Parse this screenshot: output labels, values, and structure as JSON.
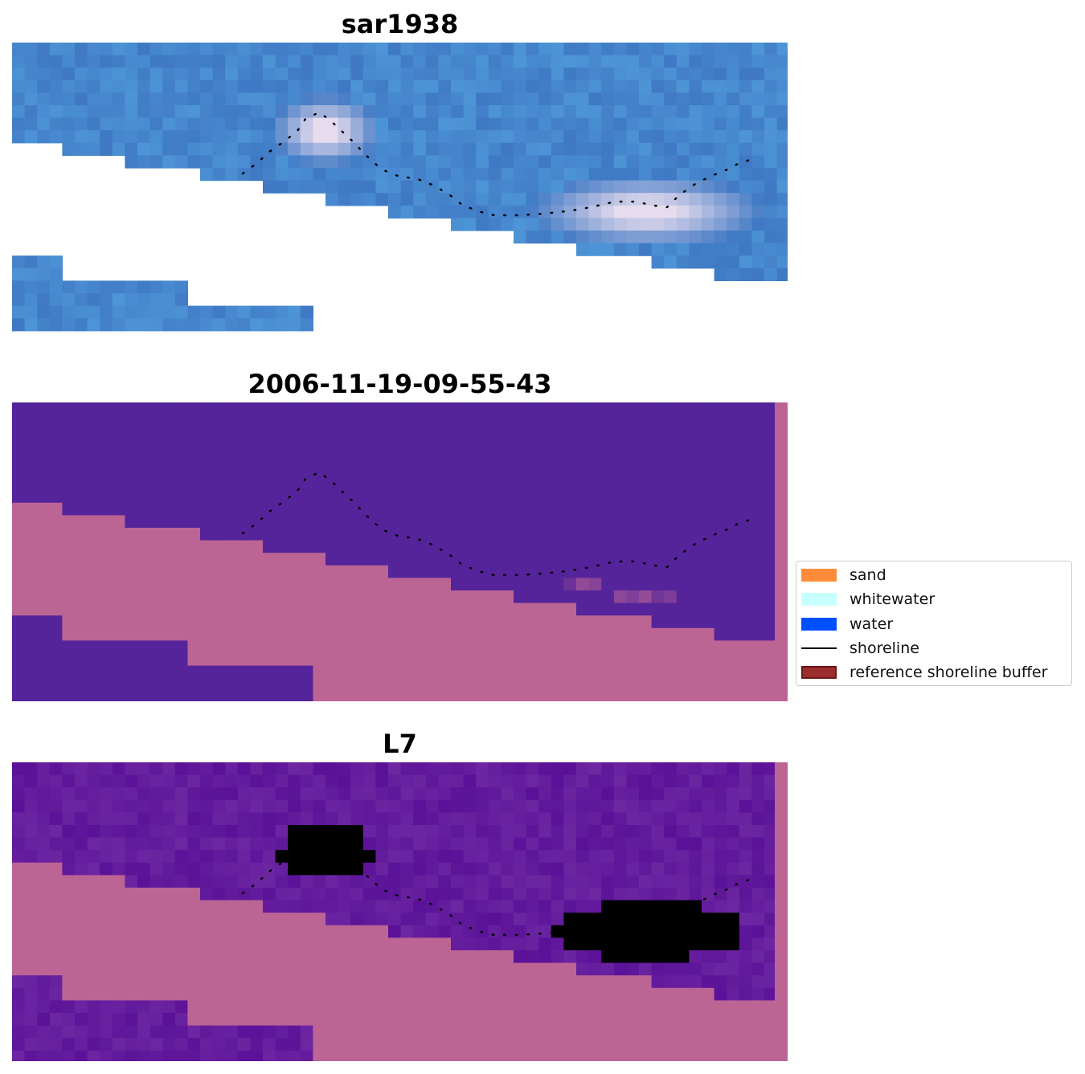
{
  "panels": [
    {
      "title": "sar1938",
      "kind": "rgb"
    },
    {
      "title": "2006-11-19-09-55-43",
      "kind": "classified"
    },
    {
      "title": "L7",
      "kind": "probability"
    }
  ],
  "legend": {
    "items": [
      {
        "label": "sand",
        "type": "patch",
        "color": "#ff8c3a",
        "icon": "sand-swatch-icon"
      },
      {
        "label": "whitewater",
        "type": "patch",
        "color": "#c8ffff",
        "icon": "whitewater-swatch-icon"
      },
      {
        "label": "water",
        "type": "patch",
        "color": "#0050ff",
        "icon": "water-swatch-icon"
      },
      {
        "label": "shoreline",
        "type": "line",
        "color": "#000000",
        "icon": "shoreline-line-icon"
      },
      {
        "label": "reference shoreline buffer",
        "type": "patch",
        "color": "#9b2d2d",
        "edge": "#6e1515",
        "icon": "buffer-swatch-icon"
      }
    ]
  },
  "colors": {
    "ocean_blue": "#3f78c4",
    "ocean_purple": "#55249a",
    "land_pink": "#bc6494",
    "surf_white": "#e6dcee",
    "land_red": "#c4104a"
  }
}
